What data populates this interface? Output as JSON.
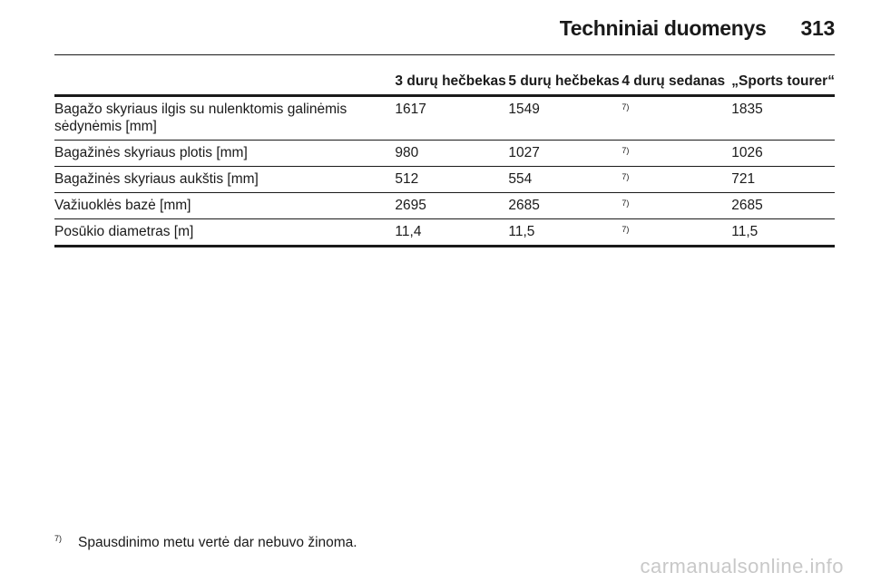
{
  "header": {
    "title": "Techniniai duomenys",
    "page_number": "313"
  },
  "table": {
    "columns": [
      "",
      "3 durų hečbekas",
      "5 durų hečbekas",
      "4 durų sedanas",
      "„Sports tourer“"
    ],
    "rows": [
      {
        "label": "Bagažo skyriaus ilgis su nulenktomis galinėmis sėdynėmis [mm]",
        "v1": "1617",
        "v2": "1549",
        "v3": "7)",
        "v4": "1835"
      },
      {
        "label": "Bagažinės skyriaus plotis [mm]",
        "v1": "980",
        "v2": "1027",
        "v3": "7)",
        "v4": "1026"
      },
      {
        "label": "Bagažinės skyriaus aukštis [mm]",
        "v1": "512",
        "v2": "554",
        "v3": "7)",
        "v4": "721"
      },
      {
        "label": "Važiuoklės bazė [mm]",
        "v1": "2695",
        "v2": "2685",
        "v3": "7)",
        "v4": "2685"
      },
      {
        "label": "Posūkio diametras [m]",
        "v1": "11,4",
        "v2": "11,5",
        "v3": "7)",
        "v4": "11,5"
      }
    ]
  },
  "footnote": {
    "mark": "7)",
    "text": "Spausdinimo metu vertė dar nebuvo žinoma."
  },
  "watermark": "carmanualsonline.info"
}
